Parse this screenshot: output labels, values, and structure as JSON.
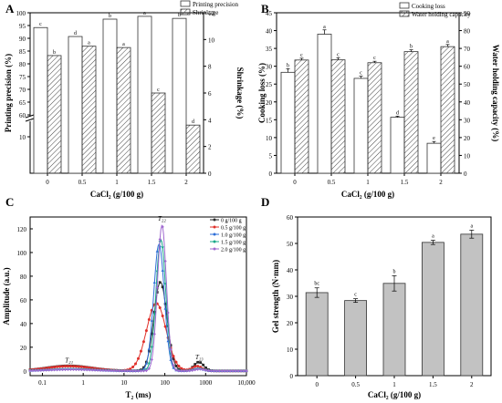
{
  "colors": {
    "bar_plain": "#ffffff",
    "bar_outline": "#333333",
    "hatch": "#444444",
    "bar_grey": "#c2c2c2",
    "axis": "#000000"
  },
  "chart_data": [
    {
      "panel": "A",
      "type": "bar",
      "categories": [
        "0",
        "0.5",
        "1",
        "1.5",
        "2"
      ],
      "xlabel": "CaCl₂ (g/100 g)",
      "ylabel": "Printing precision (%)",
      "y2label": "Shrinkage (%)",
      "ylim": [
        10,
        100
      ],
      "y_ticks": [
        "10",
        "60",
        "65",
        "70",
        "75",
        "80",
        "85",
        "90",
        "95",
        "100"
      ],
      "y2lim": [
        0,
        12
      ],
      "y2_ticks": [
        "0",
        "2",
        "4",
        "6",
        "8",
        "10",
        "12"
      ],
      "axis_break": true,
      "legend_position": "top-right",
      "series": [
        {
          "name": "Printing precision",
          "axis": "left",
          "pattern": "plain",
          "values": [
            94.2,
            90.7,
            97.5,
            98.6,
            97.8
          ],
          "letters": [
            "c",
            "d",
            "b",
            "a",
            "b"
          ]
        },
        {
          "name": "Shrinkage",
          "axis": "right",
          "pattern": "hatched",
          "values": [
            8.8,
            9.5,
            9.4,
            6.0,
            3.6
          ],
          "letters": [
            "b",
            "a",
            "a",
            "c",
            "d"
          ]
        }
      ]
    },
    {
      "panel": "B",
      "type": "bar",
      "categories": [
        "0",
        "0.5",
        "1",
        "1.5",
        "2"
      ],
      "xlabel": "CaCl₂ (g/100 g)",
      "ylabel": "Cooking loss (%)",
      "y2label": "Water holding capacity (%)",
      "ylim": [
        0,
        45
      ],
      "y_ticks": [
        "0",
        "5",
        "10",
        "15",
        "20",
        "25",
        "30",
        "35",
        "40",
        "45"
      ],
      "y2lim": [
        0,
        90
      ],
      "y2_ticks": [
        "0",
        "10",
        "20",
        "30",
        "40",
        "50",
        "60",
        "70",
        "80",
        "90"
      ],
      "legend_position": "top-right",
      "series": [
        {
          "name": "Cooking loss",
          "axis": "left",
          "pattern": "plain",
          "values": [
            28.3,
            39.0,
            26.6,
            15.7,
            8.4
          ],
          "errors": [
            1.0,
            1.2,
            0.6,
            0.3,
            0.5
          ],
          "letters": [
            "b",
            "a",
            "c",
            "d",
            "e"
          ]
        },
        {
          "name": "Water holding capacity",
          "axis": "right",
          "pattern": "hatched",
          "values": [
            63.5,
            63.6,
            62.0,
            68.2,
            71.0
          ],
          "errors": [
            1.0,
            1.2,
            0.8,
            1.0,
            1.2
          ],
          "letters": [
            "c",
            "c",
            "c",
            "b",
            "a"
          ]
        }
      ]
    },
    {
      "panel": "C",
      "type": "line",
      "xlabel": "T₂ (ms)",
      "ylabel": "Amplitude (a.u.)",
      "x_scale": "log",
      "xlim": [
        0.05,
        10000
      ],
      "x_ticks": [
        "0.1",
        "1",
        "10",
        "100",
        "1000",
        "10,000"
      ],
      "x_tick_values": [
        0.1,
        1,
        10,
        100,
        1000,
        10000
      ],
      "ylim": [
        -4,
        130
      ],
      "y_ticks": [
        "0",
        "20",
        "40",
        "60",
        "80",
        "100",
        "120"
      ],
      "y_tick_values": [
        0,
        20,
        40,
        60,
        80,
        100,
        120
      ],
      "legend_position": "top-right",
      "annotations": [
        {
          "text": "T₂₁",
          "x": 0.45,
          "y": 7
        },
        {
          "text": "T₂₂",
          "x": 85,
          "y": 127
        },
        {
          "text": "T₂₃",
          "x": 700,
          "y": 10
        }
      ],
      "series": [
        {
          "name": "0 g/100 g",
          "color": "#2a2a2a",
          "marker": "square",
          "peaks": [
            {
              "x": 0.45,
              "h": 4.3,
              "w": 0.55
            },
            {
              "x": 78,
              "h": 75,
              "w": 0.16
            },
            {
              "x": 680,
              "h": 7.5,
              "w": 0.12
            }
          ]
        },
        {
          "name": "0.5 g/100 g",
          "color": "#e0302a",
          "marker": "circle",
          "peaks": [
            {
              "x": 0.45,
              "h": 4.0,
              "w": 0.55
            },
            {
              "x": 62,
              "h": 57,
              "w": 0.24
            },
            {
              "x": 620,
              "h": 4.0,
              "w": 0.12
            }
          ]
        },
        {
          "name": "1.0 g/100 g",
          "color": "#2e6fd8",
          "marker": "triangle",
          "peaks": [
            {
              "x": 0.5,
              "h": 1.6,
              "w": 0.55
            },
            {
              "x": 72,
              "h": 107,
              "w": 0.13
            },
            {
              "x": 650,
              "h": 2.0,
              "w": 0.12
            }
          ]
        },
        {
          "name": "1.5 g/100 g",
          "color": "#17a889",
          "marker": "triangle-down",
          "peaks": [
            {
              "x": 0.5,
              "h": 1.4,
              "w": 0.55
            },
            {
              "x": 80,
              "h": 111,
              "w": 0.12
            },
            {
              "x": 700,
              "h": 1.8,
              "w": 0.12
            }
          ]
        },
        {
          "name": "2.0 g/100 g",
          "color": "#a06ad0",
          "marker": "diamond",
          "peaks": [
            {
              "x": 0.5,
              "h": 1.2,
              "w": 0.55
            },
            {
              "x": 85,
              "h": 123,
              "w": 0.11
            },
            {
              "x": 720,
              "h": 1.5,
              "w": 0.12
            }
          ]
        }
      ]
    },
    {
      "panel": "D",
      "type": "bar",
      "categories": [
        "0",
        "0.5",
        "1",
        "1.5",
        "2"
      ],
      "xlabel": "CaCl₂ (g/100 g)",
      "ylabel": "Gel strength (N·mm)",
      "ylim": [
        0,
        60
      ],
      "y_ticks": [
        "0",
        "10",
        "20",
        "30",
        "40",
        "50",
        "60"
      ],
      "series": [
        {
          "name": "",
          "pattern": "grey",
          "values": [
            31.4,
            28.4,
            34.9,
            50.4,
            53.5
          ],
          "errors": [
            1.8,
            0.7,
            2.9,
            0.8,
            1.5
          ],
          "letters": [
            "bc",
            "c",
            "b",
            "a",
            "a"
          ]
        }
      ]
    }
  ]
}
